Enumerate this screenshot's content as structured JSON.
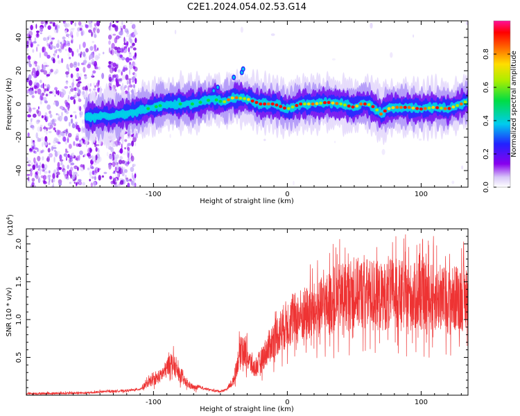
{
  "title": "C2E1.2024.054.02.53.G14",
  "chart_data": [
    {
      "type": "heatmap",
      "xlabel": "Height of straight line (km)",
      "ylabel": "Frequency (Hz)",
      "xlim": [
        -195,
        135
      ],
      "ylim": [
        -50,
        50
      ],
      "xticks": [
        -100,
        0,
        100
      ],
      "yticks": [
        -40,
        -20,
        0,
        20,
        40
      ],
      "colorbar": {
        "label": "Normalized spectral amplitude",
        "range": [
          0,
          1
        ],
        "ticks": [
          "0.0",
          "0.2",
          "0.4",
          "0.6",
          "0.8"
        ]
      },
      "ridge": [
        [
          -150,
          -8
        ],
        [
          -130,
          -7
        ],
        [
          -115,
          -5
        ],
        [
          -100,
          -2
        ],
        [
          -90,
          0
        ],
        [
          -80,
          0
        ],
        [
          -70,
          0
        ],
        [
          -60,
          2
        ],
        [
          -55,
          3
        ],
        [
          -48,
          1
        ],
        [
          -40,
          4
        ],
        [
          -30,
          3
        ],
        [
          -20,
          0
        ],
        [
          -10,
          0
        ],
        [
          0,
          -3
        ],
        [
          10,
          0
        ],
        [
          20,
          0
        ],
        [
          30,
          1
        ],
        [
          40,
          0
        ],
        [
          50,
          -2
        ],
        [
          55,
          0
        ],
        [
          60,
          0
        ],
        [
          65,
          -2
        ],
        [
          70,
          -6
        ],
        [
          75,
          -3
        ],
        [
          80,
          -2
        ],
        [
          90,
          -2
        ],
        [
          100,
          -3
        ],
        [
          110,
          -2
        ],
        [
          120,
          -3
        ],
        [
          130,
          0
        ],
        [
          135,
          2
        ]
      ]
    },
    {
      "type": "line",
      "xlabel": "Height of straight line (km)",
      "ylabel": "SNR (10 * v/v)",
      "y_multiplier": "(x10",
      "y_multiplier_exp": "4",
      "y_multiplier_close": ")",
      "xlim": [
        -195,
        135
      ],
      "ylim": [
        0,
        2.2
      ],
      "xticks": [
        -100,
        0,
        100
      ],
      "yticks": [
        "0.5",
        "1.0",
        "1.5",
        "2.0"
      ],
      "series": [
        {
          "color": "#ee3333",
          "x": [
            -195,
            -150,
            -135,
            -120,
            -110,
            -105,
            -100,
            -95,
            -90,
            -88,
            -85,
            -80,
            -75,
            -70,
            -65,
            -60,
            -55,
            -50,
            -45,
            -40,
            -37,
            -34,
            -30,
            -25,
            -20,
            -15,
            -10,
            -5,
            0,
            10,
            20,
            30,
            40,
            50,
            60,
            70,
            80,
            90,
            100,
            110,
            120,
            130,
            135
          ],
          "y": [
            0.02,
            0.03,
            0.05,
            0.06,
            0.08,
            0.15,
            0.2,
            0.25,
            0.35,
            0.45,
            0.4,
            0.25,
            0.15,
            0.1,
            0.1,
            0.08,
            0.06,
            0.05,
            0.08,
            0.2,
            0.45,
            0.65,
            0.5,
            0.35,
            0.45,
            0.6,
            0.75,
            0.85,
            0.95,
            1.05,
            1.1,
            1.2,
            1.3,
            1.35,
            1.35,
            1.3,
            1.35,
            1.3,
            1.3,
            1.3,
            1.25,
            1.3,
            1.25
          ]
        }
      ]
    }
  ]
}
